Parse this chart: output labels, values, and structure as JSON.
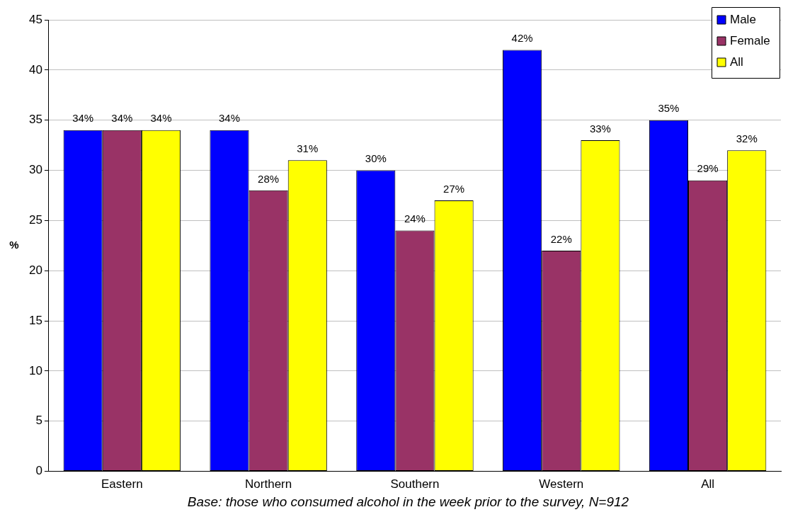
{
  "chart_data": {
    "type": "bar",
    "ylabel": "%",
    "categories": [
      "Eastern",
      "Northern",
      "Southern",
      "Western",
      "All"
    ],
    "series": [
      {
        "name": "Male",
        "color": "#0000ff",
        "values": [
          34,
          34,
          30,
          42,
          35
        ],
        "value_labels": [
          "34%",
          "34%",
          "30%",
          "42%",
          "35%"
        ]
      },
      {
        "name": "Female",
        "color": "#993366",
        "values": [
          34,
          28,
          24,
          22,
          29
        ],
        "value_labels": [
          "34%",
          "28%",
          "24%",
          "22%",
          "29%"
        ]
      },
      {
        "name": "All",
        "color": "#ffff00",
        "values": [
          34,
          31,
          27,
          33,
          32
        ],
        "value_labels": [
          "34%",
          "31%",
          "27%",
          "33%",
          "32%"
        ]
      }
    ],
    "ylim": [
      0,
      45
    ],
    "yticks": [
      0,
      5,
      10,
      15,
      20,
      25,
      30,
      35,
      40,
      45
    ],
    "grid": "y",
    "legend": "top right",
    "annotations": [
      "Base: those who consumed alcohol in the week prior to the survey, N=912"
    ]
  }
}
